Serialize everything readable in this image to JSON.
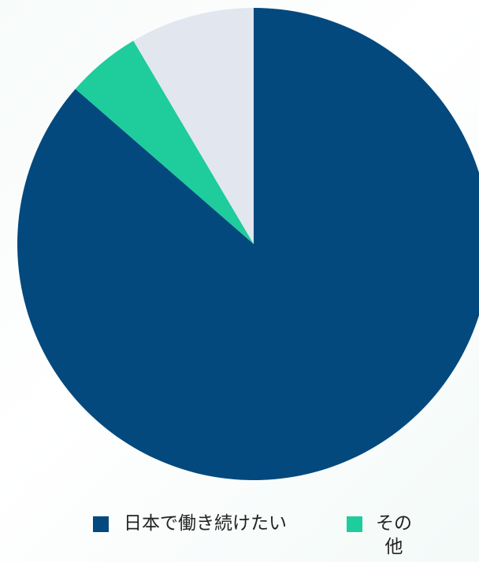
{
  "chart_data": {
    "type": "pie",
    "categories": [
      "日本で働き続けたい",
      "その他",
      null
    ],
    "values": [
      86.4,
      5.1,
      8.5
    ],
    "colors": [
      "#03497e",
      "#1ecc9c",
      "#e1e6ef"
    ],
    "start_angle": 0,
    "direction": "clockwise"
  }
}
